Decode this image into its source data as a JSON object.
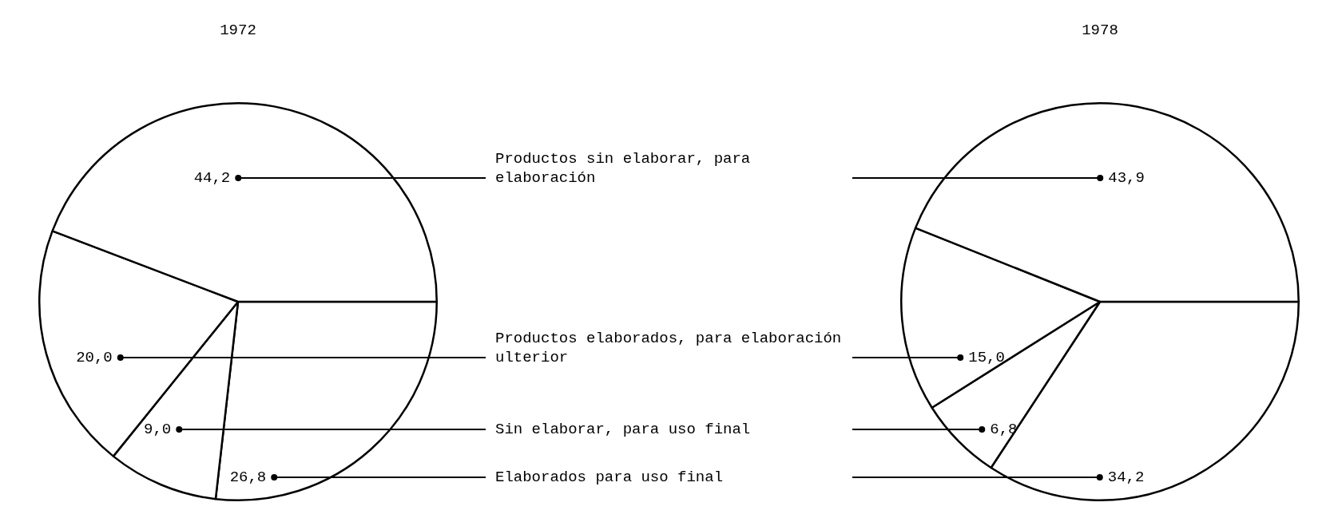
{
  "chart_data": {
    "type": "pie",
    "categories": [
      "Productos sin elaborar, para elaboración",
      "Productos elaborados, para elaboración ulterior",
      "Sin elaborar, para uso final",
      "Elaborados para uso final"
    ],
    "colors": [
      "#ffffff",
      "#ffffff",
      "#ffffff",
      "#ffffff"
    ],
    "series": [
      {
        "name": "1972",
        "values": [
          44.2,
          20.0,
          9.0,
          26.8
        ],
        "value_labels": [
          "44,2",
          "20,0",
          "9,0",
          "26,8"
        ]
      },
      {
        "name": "1978",
        "values": [
          43.9,
          15.0,
          6.8,
          34.2
        ],
        "value_labels": [
          "43,9",
          "15,0",
          "6,8",
          "34,2"
        ]
      }
    ],
    "legend": false
  }
}
